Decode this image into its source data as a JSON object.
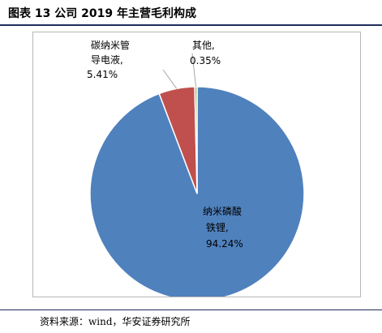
{
  "figure": {
    "title": "图表 13 公司 2019 年主营毛利构成",
    "source": "资料来源：wind，华安证券研究所"
  },
  "colors": {
    "rule": "#1f2d5a",
    "frame": "#b7b7b7",
    "leader": "#a6a6a6"
  },
  "chart_data": {
    "type": "pie",
    "start": "12 o'clock",
    "direction": "clockwise",
    "slices": [
      {
        "label_lines": [
          "纳米磷酸",
          "铁锂,"
        ],
        "value_text": "94.24%",
        "value": 94.24,
        "color": "#4f81bd"
      },
      {
        "label_lines": [
          "碳纳米管",
          "导电液,"
        ],
        "value_text": "5.41%",
        "value": 5.41,
        "color": "#c0504d"
      },
      {
        "label_lines": [
          "其他,"
        ],
        "value_text": "0.35%",
        "value": 0.35,
        "color": "#9bbb59"
      }
    ]
  }
}
